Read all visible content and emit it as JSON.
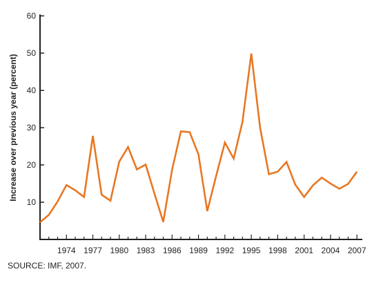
{
  "chart_data": {
    "type": "line",
    "title": "",
    "xlabel": "",
    "ylabel": "Increase over previous year (percent)",
    "xlim": [
      1971,
      2007.3
    ],
    "ylim": [
      0,
      60
    ],
    "yticks": [
      10,
      20,
      30,
      40,
      50,
      60
    ],
    "xticks": [
      1974,
      1977,
      1980,
      1983,
      1986,
      1989,
      1992,
      1995,
      1998,
      2001,
      2004,
      2007
    ],
    "grid": false,
    "line_color": "#e87722",
    "axis_color": "#231f20",
    "series": [
      {
        "x": [
          1971,
          1972,
          1973,
          1974,
          1975,
          1976,
          1977,
          1978,
          1979,
          1980,
          1981,
          1982,
          1983,
          1984,
          1985,
          1986,
          1987,
          1988,
          1989,
          1990,
          1991,
          1992,
          1993,
          1994,
          1995,
          1996,
          1997,
          1998,
          1999,
          2000,
          2001,
          2002,
          2003,
          2004,
          2005,
          2006,
          2007
        ],
        "values": [
          4.6,
          6.6,
          10.2,
          14.6,
          13.2,
          11.4,
          27.8,
          12.0,
          10.4,
          20.9,
          24.8,
          18.8,
          20.1,
          12.3,
          4.7,
          18.7,
          29.0,
          28.8,
          22.8,
          7.6,
          17.0,
          26.0,
          21.7,
          31.6,
          49.9,
          30.0,
          17.5,
          18.2,
          20.8,
          14.7,
          11.4,
          14.5,
          16.6,
          15.0,
          13.6,
          14.9,
          18.2
        ]
      }
    ]
  },
  "source": "SOURCE: IMF, 2007."
}
